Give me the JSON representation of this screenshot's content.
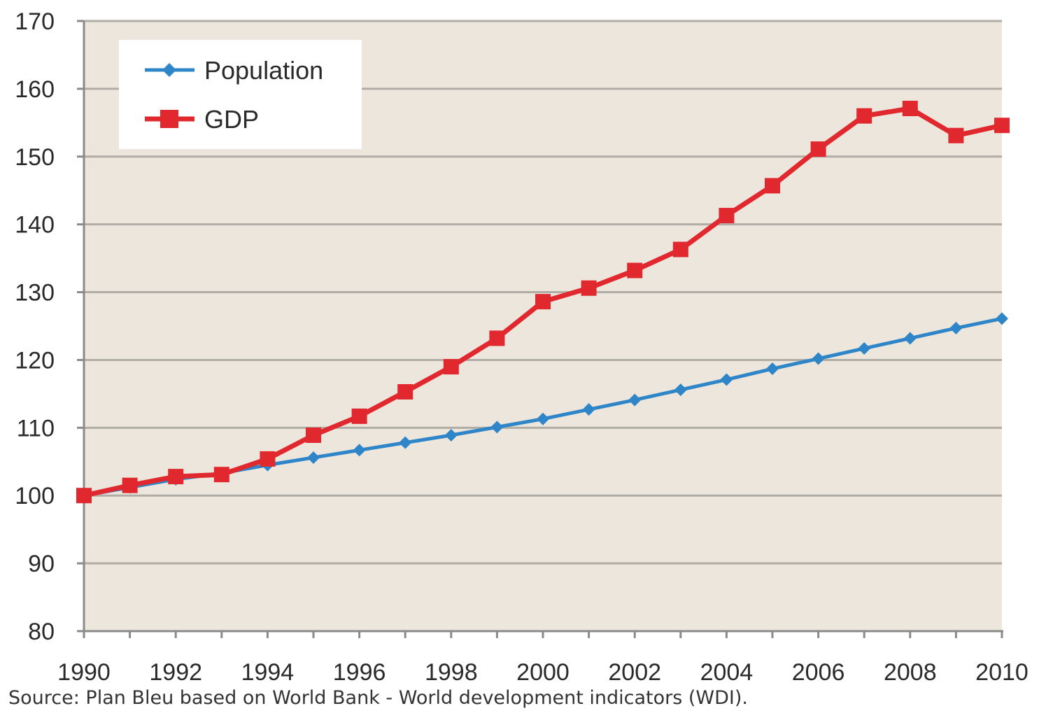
{
  "chart_data": {
    "type": "line",
    "title": "",
    "xlabel": "",
    "ylabel": "",
    "x": [
      1990,
      1991,
      1992,
      1993,
      1994,
      1995,
      1996,
      1997,
      1998,
      1999,
      2000,
      2001,
      2002,
      2003,
      2004,
      2005,
      2006,
      2007,
      2008,
      2009,
      2010
    ],
    "xlim": [
      1990,
      2010
    ],
    "ylim": [
      80,
      170
    ],
    "yticks": [
      80,
      90,
      100,
      110,
      120,
      130,
      140,
      150,
      160,
      170
    ],
    "xtick_labels": [
      "1990",
      "1992",
      "1994",
      "1996",
      "1998",
      "2000",
      "2002",
      "2004",
      "2006",
      "2008",
      "2010"
    ],
    "ytick_labels": [
      "80",
      "90",
      "100",
      "110",
      "120",
      "130",
      "140",
      "150",
      "160",
      "170"
    ],
    "grid": true,
    "legend_position": "top-left",
    "series": [
      {
        "name": "Population",
        "color": "#2e86c8",
        "marker": "diamond",
        "values": [
          100,
          101.2,
          102.4,
          103.3,
          104.5,
          105.6,
          106.7,
          107.8,
          108.9,
          110.1,
          111.3,
          112.7,
          114.1,
          115.6,
          117.1,
          118.7,
          120.2,
          121.7,
          123.2,
          124.7,
          126.1
        ]
      },
      {
        "name": "GDP",
        "color": "#e0282e",
        "marker": "square",
        "values": [
          100,
          101.5,
          102.8,
          103.1,
          105.4,
          108.9,
          111.7,
          115.3,
          119.0,
          123.2,
          128.6,
          130.6,
          133.2,
          136.3,
          141.3,
          145.7,
          151.1,
          156.0,
          157.1,
          153.1,
          154.6
        ]
      }
    ],
    "background_color": "#ede6dc",
    "gridline_color": "#b0aca6"
  },
  "source_note": "Source: Plan Bleu based on World Bank - World development indicators (WDI)."
}
